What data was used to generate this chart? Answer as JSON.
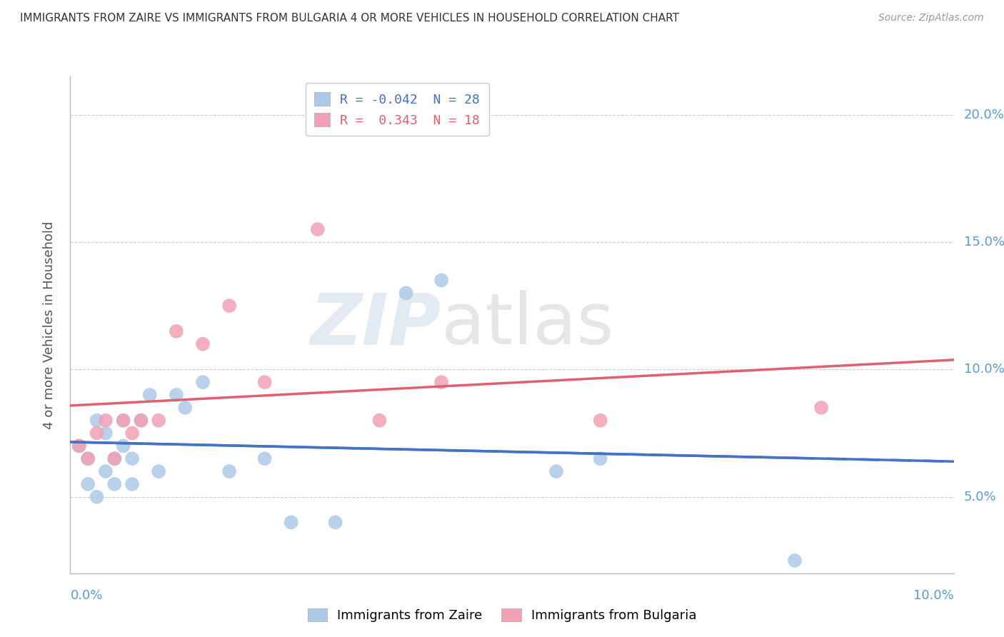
{
  "title": "IMMIGRANTS FROM ZAIRE VS IMMIGRANTS FROM BULGARIA 4 OR MORE VEHICLES IN HOUSEHOLD CORRELATION CHART",
  "source": "Source: ZipAtlas.com",
  "ylabel": "4 or more Vehicles in Household",
  "ytick_vals": [
    0.05,
    0.1,
    0.15,
    0.2
  ],
  "xlim": [
    0.0,
    0.1
  ],
  "ylim": [
    0.02,
    0.215
  ],
  "legend_r1": "R = -0.042  N = 28",
  "legend_r2": "R =  0.343  N = 18",
  "zaire_color": "#adc9e8",
  "bulgaria_color": "#f2a0b5",
  "zaire_line_color": "#4472c4",
  "bulgaria_line_color": "#e06070",
  "watermark_zip": "ZIP",
  "watermark_atlas": "atlas",
  "zaire_points_x": [
    0.001,
    0.002,
    0.002,
    0.003,
    0.003,
    0.004,
    0.004,
    0.005,
    0.005,
    0.006,
    0.006,
    0.007,
    0.007,
    0.008,
    0.009,
    0.01,
    0.012,
    0.013,
    0.015,
    0.018,
    0.022,
    0.025,
    0.03,
    0.038,
    0.042,
    0.055,
    0.06,
    0.082
  ],
  "zaire_points_y": [
    0.07,
    0.065,
    0.055,
    0.08,
    0.05,
    0.075,
    0.06,
    0.065,
    0.055,
    0.08,
    0.07,
    0.055,
    0.065,
    0.08,
    0.09,
    0.06,
    0.09,
    0.085,
    0.095,
    0.06,
    0.065,
    0.04,
    0.04,
    0.13,
    0.135,
    0.06,
    0.065,
    0.025
  ],
  "bulgaria_points_x": [
    0.001,
    0.002,
    0.003,
    0.004,
    0.005,
    0.006,
    0.007,
    0.008,
    0.01,
    0.012,
    0.015,
    0.018,
    0.022,
    0.028,
    0.035,
    0.042,
    0.06,
    0.085
  ],
  "bulgaria_points_y": [
    0.07,
    0.065,
    0.075,
    0.08,
    0.065,
    0.08,
    0.075,
    0.08,
    0.08,
    0.115,
    0.11,
    0.125,
    0.095,
    0.155,
    0.08,
    0.095,
    0.08,
    0.085
  ]
}
